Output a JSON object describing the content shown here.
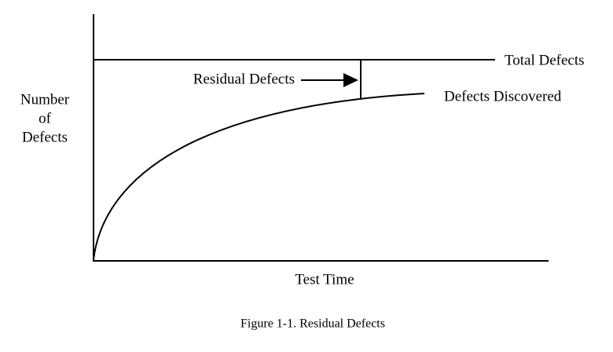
{
  "diagram": {
    "y_axis_label": [
      "Number",
      "of",
      "Defects"
    ],
    "x_axis_label": "Test Time",
    "lines": {
      "total": "Total Defects",
      "discovered": "Defects Discovered"
    },
    "annotation": "Residual Defects"
  },
  "caption": "Figure 1-1. Residual Defects"
}
